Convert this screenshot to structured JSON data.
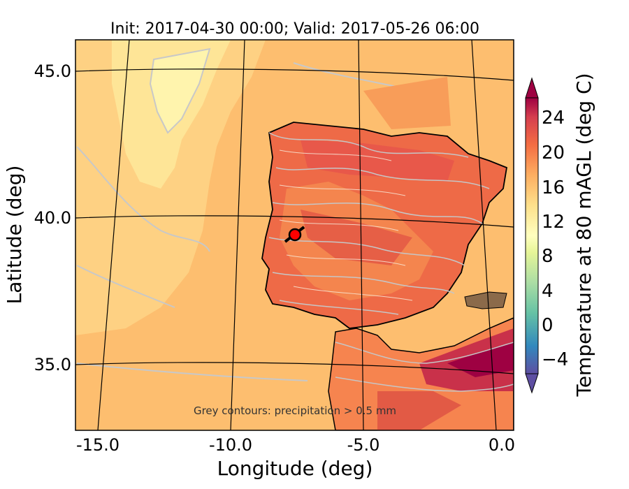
{
  "title": "Init: 2017-04-30 00:00; Valid: 2017-05-26 06:00",
  "xlabel": "Longitude (deg)",
  "ylabel": "Latitude (deg)",
  "x_ticks": [
    "-15.0",
    "-10.0",
    "-5.0",
    "0.0"
  ],
  "y_ticks": [
    "45.0",
    "40.0",
    "35.0"
  ],
  "annotation": "Grey contours: precipitation > 0.5 mm",
  "colorbar": {
    "label": "Temperature at 80 mAGL (deg C)",
    "ticks": [
      "24",
      "20",
      "16",
      "12",
      "8",
      "4",
      "0",
      "−4"
    ],
    "range": [
      -8,
      28
    ],
    "extend": "both",
    "colormap": "Spectral_r"
  },
  "map_extent": {
    "lon": [
      -16,
      0.3
    ],
    "lat": [
      32.8,
      46.2
    ]
  },
  "marker": {
    "lon": -7.6,
    "lat": 39.3,
    "color": "#ff0000"
  },
  "colors": {
    "ocean_warm": "#fdbe6f",
    "ocean_mild": "#fee597",
    "land_hot": "#e95c47",
    "precip_contour": "#c8c8c8",
    "coastline": "#000000"
  }
}
